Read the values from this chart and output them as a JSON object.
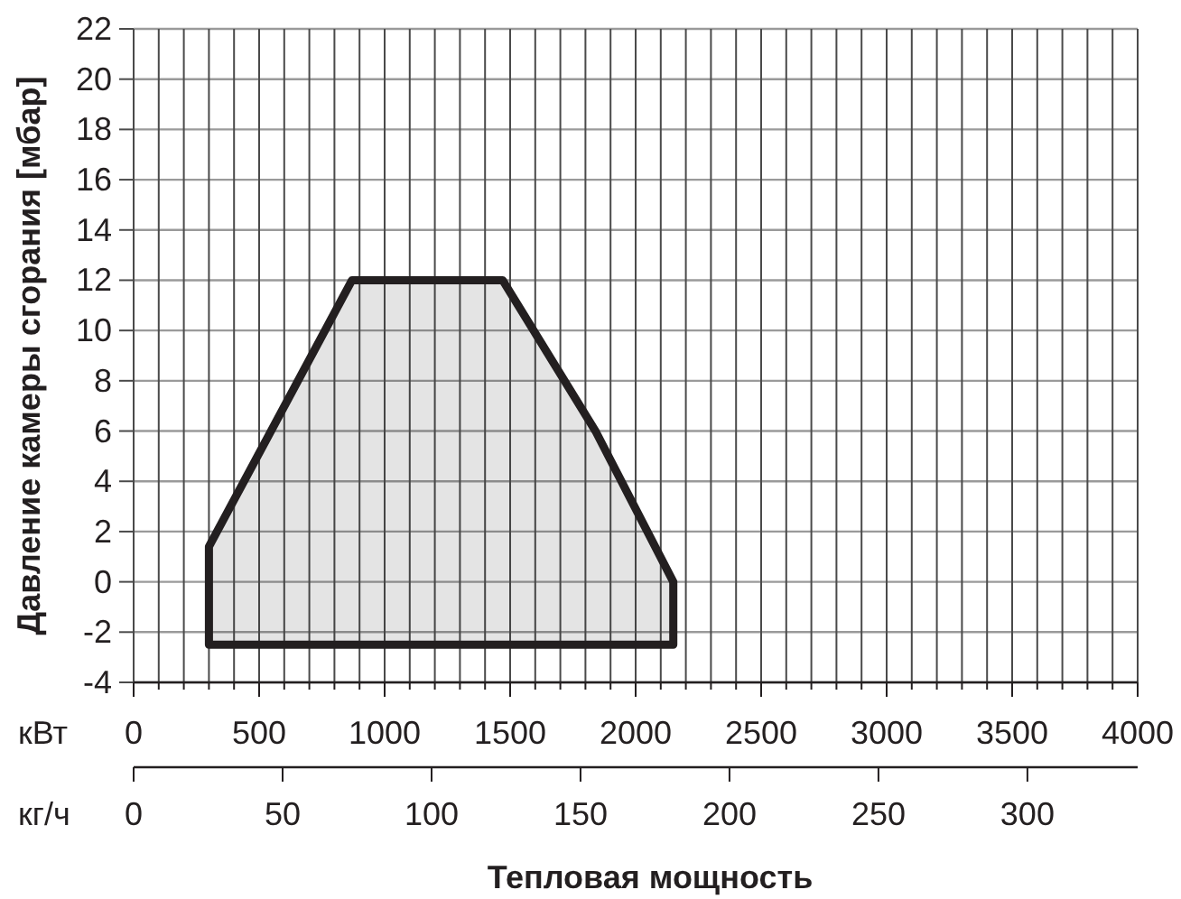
{
  "chart_data": {
    "type": "area",
    "xlabel": "кВт",
    "x2label": "кг/ч",
    "ylabel": "Давление камеры сгорания [мбар]",
    "annotations": [
      "Тепловая мощность"
    ],
    "x": [
      300,
      300,
      870,
      1470,
      1840,
      2150,
      2150
    ],
    "values": [
      -2.5,
      1.4,
      12,
      12,
      6,
      0,
      -2.5
    ],
    "color": "#231f20",
    "xlim": [
      0,
      4000
    ],
    "xticks": [
      0,
      {
        "value": 100,
        "label": null
      },
      {
        "value": 200,
        "label": null
      },
      {
        "value": 300,
        "label": null
      },
      {
        "value": 400,
        "label": null
      },
      500,
      {
        "value": 600,
        "label": null
      },
      {
        "value": 700,
        "label": null
      },
      {
        "value": 800,
        "label": null
      },
      {
        "value": 900,
        "label": null
      },
      1000,
      {
        "value": 1100,
        "label": null
      },
      {
        "value": 1200,
        "label": null
      },
      {
        "value": 1300,
        "label": null
      },
      {
        "value": 1400,
        "label": null
      },
      1500,
      {
        "value": 1600,
        "label": null
      },
      {
        "value": 1700,
        "label": null
      },
      {
        "value": 1800,
        "label": null
      },
      {
        "value": 1900,
        "label": null
      },
      2000,
      {
        "value": 2100,
        "label": null
      },
      {
        "value": 2200,
        "label": null
      },
      {
        "value": 2300,
        "label": null
      },
      {
        "value": 2400,
        "label": null
      },
      2500,
      {
        "value": 2600,
        "label": null
      },
      {
        "value": 2700,
        "label": null
      },
      {
        "value": 2800,
        "label": null
      },
      {
        "value": 2900,
        "label": null
      },
      3000,
      {
        "value": 3100,
        "label": null
      },
      {
        "value": 3200,
        "label": null
      },
      {
        "value": 3300,
        "label": null
      },
      {
        "value": 3400,
        "label": null
      },
      3500,
      {
        "value": 3600,
        "label": null
      },
      {
        "value": 3700,
        "label": null
      },
      {
        "value": 3800,
        "label": null
      },
      {
        "value": 3900,
        "label": null
      },
      4000
    ],
    "ylim": [
      -4,
      22
    ],
    "yticks": [
      -4,
      -2,
      0,
      2,
      4,
      6,
      8,
      10,
      12,
      14,
      16,
      18,
      20,
      22
    ],
    "x2lim": [
      0,
      337
    ],
    "x2ticks": [
      0,
      50,
      100,
      150,
      200,
      250,
      300
    ],
    "grid": true
  }
}
